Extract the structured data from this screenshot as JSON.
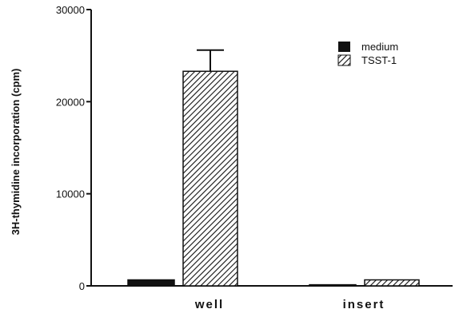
{
  "chart_data": {
    "type": "bar",
    "categories": [
      "well",
      "insert"
    ],
    "series": [
      {
        "name": "medium",
        "values": [
          650,
          120
        ],
        "errors": [
          0,
          0
        ],
        "fill": "solid"
      },
      {
        "name": "TSST-1",
        "values": [
          23300,
          650
        ],
        "errors": [
          2300,
          0
        ],
        "fill": "hatched"
      }
    ],
    "yticks": [
      "0",
      "10000",
      "20000",
      "30000"
    ],
    "ytick_values": [
      0,
      10000,
      20000,
      30000
    ],
    "ylabel": "3H-thymidine incorporation (cpm)",
    "xlabel": "",
    "ylim": [
      0,
      30000
    ],
    "legend_position": "top-right",
    "colors": {
      "bar": "#111111",
      "axis": "#111111"
    }
  }
}
